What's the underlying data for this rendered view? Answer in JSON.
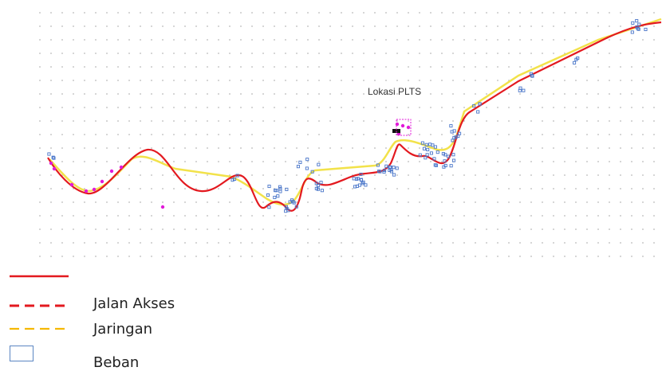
{
  "map": {
    "site_label": "Lokasi PLTS",
    "colors": {
      "road": "#e3191f",
      "network": "#f2e24a",
      "load": "#4a76c9",
      "magenta_markers": "#e11ad9",
      "grid_dots": "#b8b8b8",
      "legend_road": "#e3191f",
      "legend_access": "#e3191f",
      "legend_network": "#f5b800",
      "legend_load_box": "#5b86c2"
    }
  },
  "legend": {
    "jalan_akses": "Jalan Akses",
    "jaringan": "Jaringan",
    "beban": "Beban"
  }
}
